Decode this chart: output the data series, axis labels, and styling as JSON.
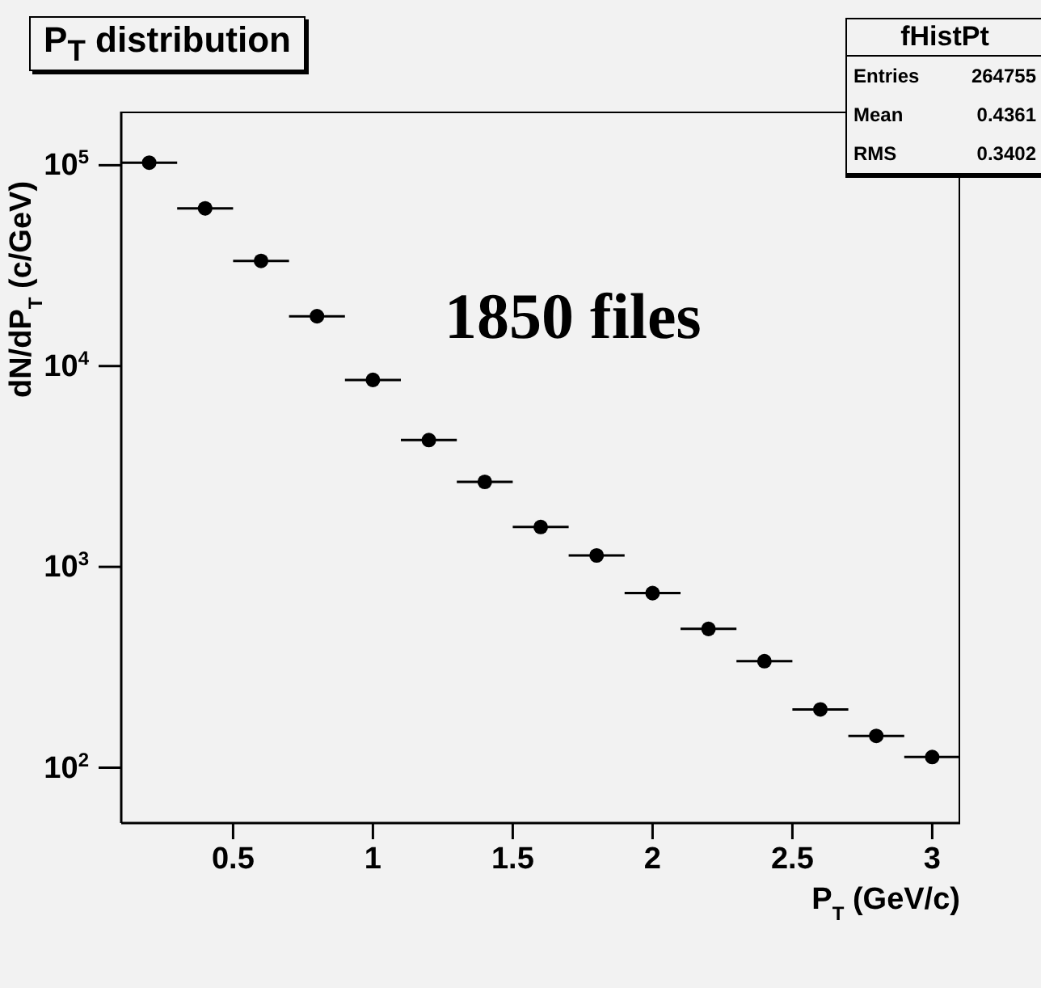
{
  "chart_data": {
    "type": "scatter",
    "title": "P$_{T}$ distribution",
    "xlabel": "P$_{T}$ (GeV/c)",
    "ylabel": "dN/dP$_{T}$ (c/GeV)",
    "annotations": [
      "1850 files",
      "fHistPt",
      "Entries 264755",
      "Mean 0.4361",
      "RMS 0.3402"
    ],
    "x": [
      0.2,
      0.4,
      0.6,
      0.8,
      1.0,
      1.2,
      1.4,
      1.6,
      1.8,
      2.0,
      2.2,
      2.4,
      2.6,
      2.8,
      3.0
    ],
    "series": [
      {
        "color": "#000000",
        "values": [
          103000,
          61000,
          33400,
          17700,
          8530,
          4280,
          2650,
          1580,
          1140,
          740,
          491,
          339,
          195,
          144,
          113
        ],
        "xerrors": [
          0.1,
          0.1,
          0.1,
          0.1,
          0.1,
          0.1,
          0.1,
          0.1,
          0.1,
          0.1,
          0.1,
          0.1,
          0.1,
          0.1,
          0.1
        ]
      }
    ],
    "xlim": [
      0.1,
      3.1
    ],
    "xticks": [
      0.5,
      1,
      1.5,
      2,
      2.5,
      3
    ],
    "ylim": [
      53,
      185000
    ],
    "yticks": [
      {
        "value": 100,
        "label": "10$^{2}$"
      },
      {
        "value": 1000,
        "label": "10$^{3}$"
      },
      {
        "value": 10000,
        "label": "10$^{4}$"
      },
      {
        "value": 100000,
        "label": "10$^{5}$"
      }
    ],
    "log": "y",
    "grid": false,
    "legend": false,
    "marker": "circle"
  }
}
